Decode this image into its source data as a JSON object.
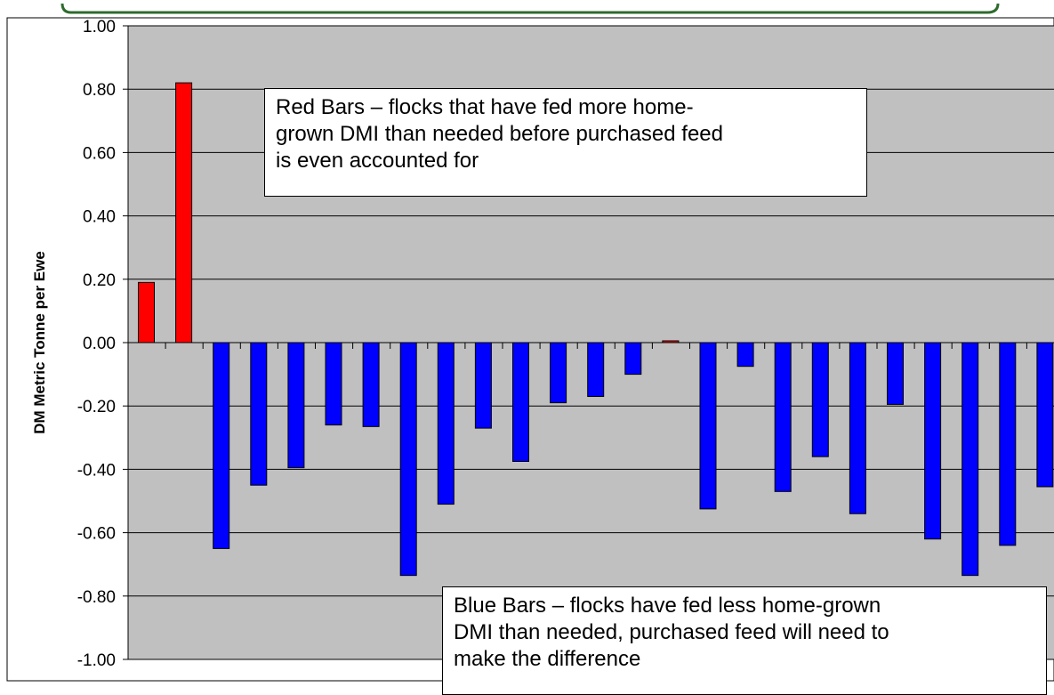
{
  "chart_data": {
    "type": "bar",
    "title": "",
    "xlabel": "",
    "ylabel": "DM Metric Tonne per Ewe",
    "ylim": [
      -1.0,
      1.0
    ],
    "yticks": [
      "1.00",
      "0.80",
      "0.60",
      "0.40",
      "0.20",
      "0.00",
      "-0.20",
      "-0.40",
      "-0.60",
      "-0.80",
      "-1.00"
    ],
    "grid": true,
    "legend": "none",
    "background_color": "#c0c0c0",
    "positive_color": "#ff0000",
    "negative_color": "#0000ff",
    "values": [
      0.19,
      0.82,
      -0.65,
      -0.45,
      -0.395,
      -0.26,
      -0.265,
      -0.735,
      -0.51,
      -0.27,
      -0.375,
      -0.19,
      -0.17,
      -0.1,
      0.005,
      -0.525,
      -0.075,
      -0.47,
      -0.36,
      -0.54,
      -0.195,
      -0.62,
      -0.735,
      -0.64,
      -0.455
    ],
    "annotations": [
      {
        "id": "red",
        "lines": [
          "Red Bars – flocks that have fed more home-",
          "grown DMI than needed before purchased feed",
          "is even accounted for"
        ]
      },
      {
        "id": "blue",
        "lines": [
          "Blue Bars – flocks have fed less home-grown",
          "DMI than needed, purchased feed will need to",
          "make the difference"
        ]
      }
    ]
  }
}
